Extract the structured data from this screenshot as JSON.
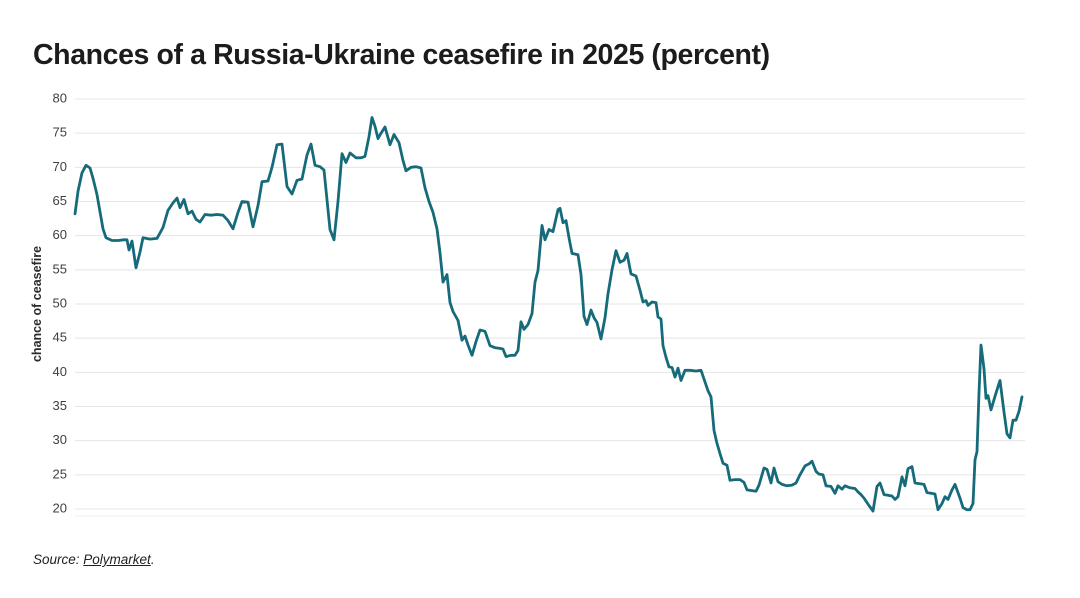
{
  "header": {
    "title": "Chances of a Russia-Ukraine ceasefire in 2025 (percent)"
  },
  "footer": {
    "source_prefix": "Source: ",
    "source_link": "Polymarket",
    "source_suffix": "."
  },
  "chart_data": {
    "type": "line",
    "title": "Chances of a Russia-Ukraine ceasefire in 2025 (percent)",
    "xlabel": "",
    "ylabel": "chance of ceasefire",
    "x_axis_tick_labels": "none shown",
    "ylim": [
      20,
      80
    ],
    "yticks": [
      80,
      75,
      70,
      65,
      60,
      55,
      50,
      45,
      40,
      35,
      30,
      25,
      20
    ],
    "grid": "horizontal only",
    "legend_position": "none",
    "line_color": "#166b7b",
    "grid_color": "#e4e4e4",
    "axis_text_color": "#3f3f3f",
    "y_axis_label_color": "#2b2b2b",
    "notes": "single time series; x values below are horizontal plot positions in px (75 = left edge, 1025 = right edge), y values are percent chance read from the y axis",
    "series": [
      {
        "name": "chance of ceasefire (percent)",
        "points": [
          [
            75,
            63.2
          ],
          [
            78,
            66.5
          ],
          [
            82,
            69.2
          ],
          [
            86,
            70.3
          ],
          [
            90,
            69.9
          ],
          [
            93,
            68.4
          ],
          [
            97,
            66
          ],
          [
            100,
            63.5
          ],
          [
            103,
            61
          ],
          [
            106,
            59.7
          ],
          [
            112,
            59.3
          ],
          [
            118,
            59.3
          ],
          [
            124,
            59.4
          ],
          [
            127,
            59.4
          ],
          [
            129,
            57.9
          ],
          [
            132,
            59.2
          ],
          [
            136,
            55.3
          ],
          [
            140,
            57.6
          ],
          [
            143,
            59.7
          ],
          [
            150,
            59.5
          ],
          [
            157,
            59.6
          ],
          [
            163,
            61.2
          ],
          [
            168,
            63.7
          ],
          [
            173,
            64.8
          ],
          [
            177,
            65.5
          ],
          [
            180,
            64.1
          ],
          [
            184,
            65.3
          ],
          [
            188,
            63.2
          ],
          [
            192,
            63.6
          ],
          [
            196,
            62.4
          ],
          [
            200,
            62
          ],
          [
            205,
            63.1
          ],
          [
            211,
            63
          ],
          [
            217,
            63.1
          ],
          [
            223,
            63
          ],
          [
            228,
            62.2
          ],
          [
            233,
            61
          ],
          [
            238,
            63.4
          ],
          [
            242,
            65
          ],
          [
            248,
            64.9
          ],
          [
            253,
            61.3
          ],
          [
            258,
            64.4
          ],
          [
            262,
            67.9
          ],
          [
            268,
            68
          ],
          [
            272,
            70
          ],
          [
            277,
            73.3
          ],
          [
            282,
            73.4
          ],
          [
            287,
            67.2
          ],
          [
            292,
            66.1
          ],
          [
            297,
            68.1
          ],
          [
            302,
            68.3
          ],
          [
            307,
            71.8
          ],
          [
            311,
            73.4
          ],
          [
            315,
            70.3
          ],
          [
            320,
            70.1
          ],
          [
            324,
            69.6
          ],
          [
            330,
            60.9
          ],
          [
            334,
            59.4
          ],
          [
            338,
            65
          ],
          [
            342,
            72
          ],
          [
            346,
            70.7
          ],
          [
            350,
            72.1
          ],
          [
            356,
            71.4
          ],
          [
            361,
            71.4
          ],
          [
            365,
            71.6
          ],
          [
            369,
            74.5
          ],
          [
            372,
            77.3
          ],
          [
            375,
            76
          ],
          [
            378,
            74.2
          ],
          [
            381,
            75
          ],
          [
            385,
            75.9
          ],
          [
            390,
            73.3
          ],
          [
            394,
            74.8
          ],
          [
            399,
            73.6
          ],
          [
            403,
            71
          ],
          [
            406,
            69.5
          ],
          [
            411,
            70
          ],
          [
            416,
            70.1
          ],
          [
            421,
            69.9
          ],
          [
            425,
            67
          ],
          [
            429,
            65
          ],
          [
            433,
            63.4
          ],
          [
            437,
            61
          ],
          [
            440,
            57.5
          ],
          [
            443,
            53.2
          ],
          [
            447,
            54.3
          ],
          [
            450,
            50.2
          ],
          [
            453,
            48.9
          ],
          [
            458,
            47.6
          ],
          [
            462,
            44.7
          ],
          [
            465,
            45.3
          ],
          [
            468,
            44
          ],
          [
            472,
            42.5
          ],
          [
            476,
            44.5
          ],
          [
            480,
            46.2
          ],
          [
            485,
            46
          ],
          [
            490,
            43.9
          ],
          [
            495,
            43.6
          ],
          [
            500,
            43.5
          ],
          [
            503,
            43.4
          ],
          [
            506,
            42.3
          ],
          [
            511,
            42.5
          ],
          [
            515,
            42.5
          ],
          [
            518,
            43.2
          ],
          [
            521,
            47.4
          ],
          [
            524,
            46.3
          ],
          [
            528,
            47
          ],
          [
            532,
            48.6
          ],
          [
            535,
            53.2
          ],
          [
            538,
            54.9
          ],
          [
            542,
            61.5
          ],
          [
            545,
            59.4
          ],
          [
            549,
            60.9
          ],
          [
            553,
            60.6
          ],
          [
            558,
            63.8
          ],
          [
            560,
            64
          ],
          [
            563,
            61.9
          ],
          [
            566,
            62.2
          ],
          [
            569,
            59.7
          ],
          [
            572,
            57.4
          ],
          [
            578,
            57.2
          ],
          [
            581,
            54.3
          ],
          [
            584,
            48.2
          ],
          [
            587,
            47
          ],
          [
            591,
            49.1
          ],
          [
            594,
            48
          ],
          [
            597,
            47.3
          ],
          [
            601,
            44.9
          ],
          [
            605,
            48
          ],
          [
            608,
            51.5
          ],
          [
            612,
            55
          ],
          [
            616,
            57.8
          ],
          [
            620,
            56.1
          ],
          [
            624,
            56.4
          ],
          [
            627,
            57.4
          ],
          [
            631,
            54.4
          ],
          [
            636,
            54.1
          ],
          [
            640,
            52
          ],
          [
            643,
            50.3
          ],
          [
            646,
            50.5
          ],
          [
            648,
            49.8
          ],
          [
            652,
            50.3
          ],
          [
            656,
            50.2
          ],
          [
            658,
            48.1
          ],
          [
            661,
            47.8
          ],
          [
            663,
            43.9
          ],
          [
            666,
            42.2
          ],
          [
            669,
            40.8
          ],
          [
            672,
            40.7
          ],
          [
            675,
            39.3
          ],
          [
            678,
            40.6
          ],
          [
            681,
            38.8
          ],
          [
            685,
            40.3
          ],
          [
            690,
            40.3
          ],
          [
            696,
            40.2
          ],
          [
            701,
            40.3
          ],
          [
            705,
            38.6
          ],
          [
            708,
            37.3
          ],
          [
            711,
            36.4
          ],
          [
            714,
            31.5
          ],
          [
            717,
            29.6
          ],
          [
            720,
            28.1
          ],
          [
            723,
            26.7
          ],
          [
            727,
            26.4
          ],
          [
            730,
            24.2
          ],
          [
            735,
            24.3
          ],
          [
            740,
            24.3
          ],
          [
            744,
            23.9
          ],
          [
            747,
            22.8
          ],
          [
            752,
            22.7
          ],
          [
            756,
            22.6
          ],
          [
            759,
            23.5
          ],
          [
            764,
            26
          ],
          [
            767,
            25.8
          ],
          [
            771,
            23.8
          ],
          [
            774,
            26
          ],
          [
            778,
            24
          ],
          [
            782,
            23.6
          ],
          [
            787,
            23.4
          ],
          [
            792,
            23.5
          ],
          [
            796,
            23.8
          ],
          [
            800,
            25
          ],
          [
            805,
            26.3
          ],
          [
            809,
            26.6
          ],
          [
            812,
            27
          ],
          [
            816,
            25.5
          ],
          [
            819,
            25.1
          ],
          [
            823,
            25
          ],
          [
            826,
            23.4
          ],
          [
            831,
            23.3
          ],
          [
            835,
            22.3
          ],
          [
            838,
            23.4
          ],
          [
            842,
            22.9
          ],
          [
            845,
            23.4
          ],
          [
            850,
            23.1
          ],
          [
            855,
            23
          ],
          [
            858,
            22.5
          ],
          [
            861,
            22.1
          ],
          [
            864,
            21.6
          ],
          [
            869,
            20.5
          ],
          [
            873,
            19.7
          ],
          [
            877,
            23.3
          ],
          [
            880,
            23.8
          ],
          [
            884,
            22.1
          ],
          [
            888,
            22
          ],
          [
            892,
            21.9
          ],
          [
            895,
            21.4
          ],
          [
            898,
            21.8
          ],
          [
            902,
            24.7
          ],
          [
            905,
            23.4
          ],
          [
            908,
            25.9
          ],
          [
            912,
            26.2
          ],
          [
            915,
            23.8
          ],
          [
            920,
            23.7
          ],
          [
            924,
            23.6
          ],
          [
            927,
            22.4
          ],
          [
            931,
            22.3
          ],
          [
            935,
            22.2
          ],
          [
            938,
            19.9
          ],
          [
            942,
            20.8
          ],
          [
            945,
            21.8
          ],
          [
            948,
            21.4
          ],
          [
            952,
            22.8
          ],
          [
            955,
            23.6
          ],
          [
            960,
            21.6
          ],
          [
            963,
            20.2
          ],
          [
            967,
            19.9
          ],
          [
            970,
            19.9
          ],
          [
            973,
            20.8
          ],
          [
            975,
            27.2
          ],
          [
            977,
            28.4
          ],
          [
            979,
            37
          ],
          [
            981,
            44
          ],
          [
            984,
            40.5
          ],
          [
            986,
            36.2
          ],
          [
            988,
            36.6
          ],
          [
            991,
            34.5
          ],
          [
            995,
            36.5
          ],
          [
            998,
            37.9
          ],
          [
            1000,
            38.8
          ],
          [
            1004,
            34.2
          ],
          [
            1007,
            31
          ],
          [
            1010,
            30.4
          ],
          [
            1013,
            33
          ],
          [
            1016,
            33
          ],
          [
            1019,
            34.3
          ],
          [
            1022,
            36.4
          ]
        ]
      }
    ]
  }
}
